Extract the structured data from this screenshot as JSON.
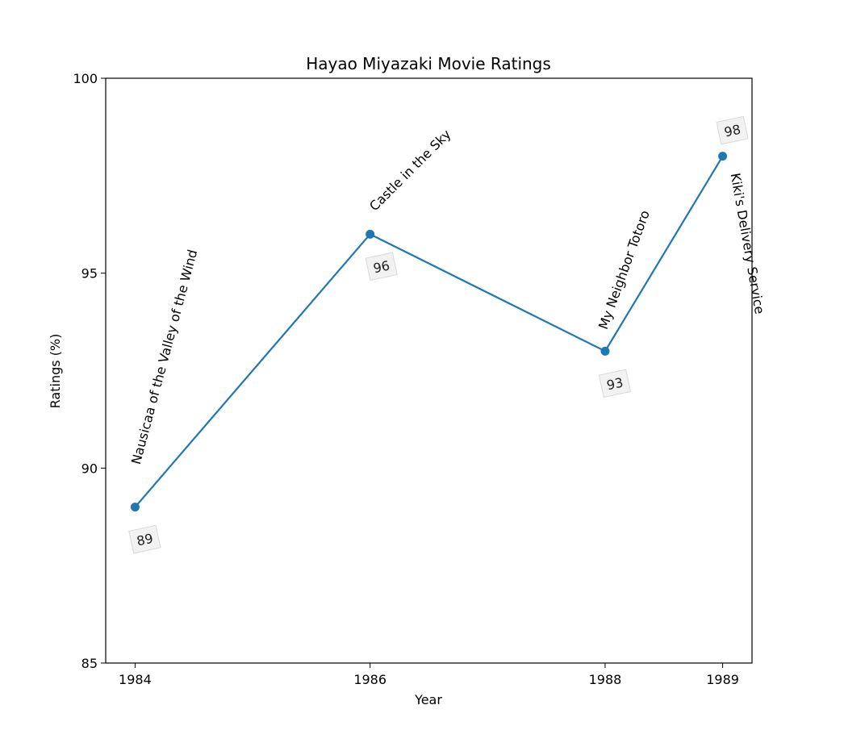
{
  "chart_data": {
    "type": "line",
    "title": "Hayao Miyazaki Movie Ratings",
    "xlabel": "Year",
    "ylabel": "Ratings (%)",
    "x": [
      1984,
      1986,
      1988,
      1989
    ],
    "xticks": [
      "1984",
      "1986",
      "1988",
      "1989"
    ],
    "xlim": [
      1983.75,
      1989.25
    ],
    "ylim": [
      85,
      100
    ],
    "yticks": [
      "85",
      "90",
      "95",
      "100"
    ],
    "grid": false,
    "series": [
      {
        "values": [
          89,
          96,
          93,
          98
        ],
        "color": "#1f77b4"
      }
    ],
    "point_labels": [
      "Nausicaa of the Valley of the Wind",
      "Castle in the Sky",
      "My Neighbor Totoro",
      "Kiki's Delivery Service"
    ],
    "value_labels": [
      "89",
      "96",
      "93",
      "98"
    ]
  }
}
